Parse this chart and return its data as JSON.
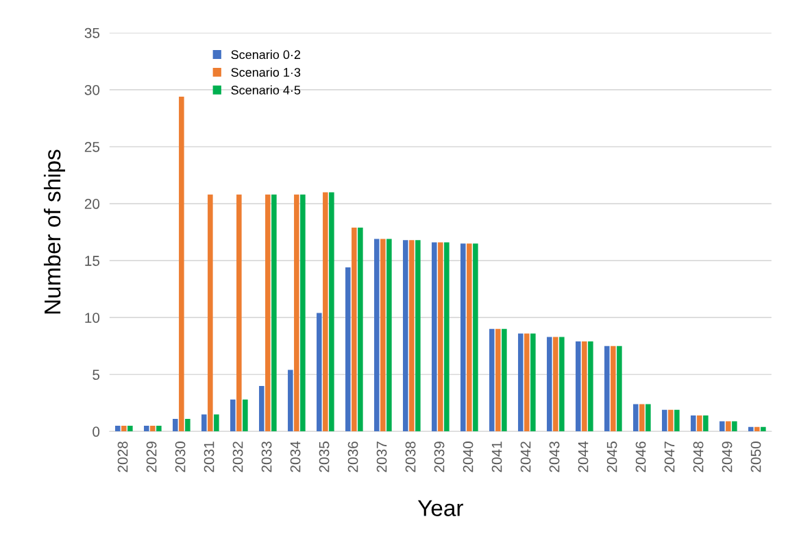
{
  "chart_data": {
    "type": "bar",
    "xlabel": "Year",
    "ylabel": "Number of ships",
    "categories": [
      "2028",
      "2029",
      "2030",
      "2031",
      "2032",
      "2033",
      "2034",
      "2035",
      "2036",
      "2037",
      "2038",
      "2039",
      "2040",
      "2041",
      "2042",
      "2043",
      "2044",
      "2045",
      "2046",
      "2047",
      "2048",
      "2049",
      "2050"
    ],
    "series": [
      {
        "name": "Scenario 0·2",
        "color": "#4472c4",
        "values": [
          0.5,
          0.5,
          1.1,
          1.5,
          2.8,
          4.0,
          5.4,
          10.4,
          14.4,
          16.9,
          16.8,
          16.6,
          16.5,
          9.0,
          8.6,
          8.3,
          7.9,
          7.5,
          2.4,
          1.9,
          1.4,
          0.9,
          0.4
        ]
      },
      {
        "name": "Scenario 1·3",
        "color": "#ed7d31",
        "values": [
          0.5,
          0.5,
          29.4,
          20.8,
          20.8,
          20.8,
          20.8,
          21.0,
          17.9,
          16.9,
          16.8,
          16.6,
          16.5,
          9.0,
          8.6,
          8.3,
          7.9,
          7.5,
          2.4,
          1.9,
          1.4,
          0.9,
          0.4
        ]
      },
      {
        "name": "Scenario 4·5",
        "color": "#00b050",
        "values": [
          0.5,
          0.5,
          1.1,
          1.5,
          2.8,
          20.8,
          20.8,
          21.0,
          17.9,
          16.9,
          16.8,
          16.6,
          16.5,
          9.0,
          8.6,
          8.3,
          7.9,
          7.5,
          2.4,
          1.9,
          1.4,
          0.9,
          0.4
        ]
      }
    ],
    "ylim": [
      0,
      35
    ],
    "yticks": [
      0,
      5,
      10,
      15,
      20,
      25,
      30,
      35
    ],
    "grid": "y",
    "legend": "top left"
  }
}
